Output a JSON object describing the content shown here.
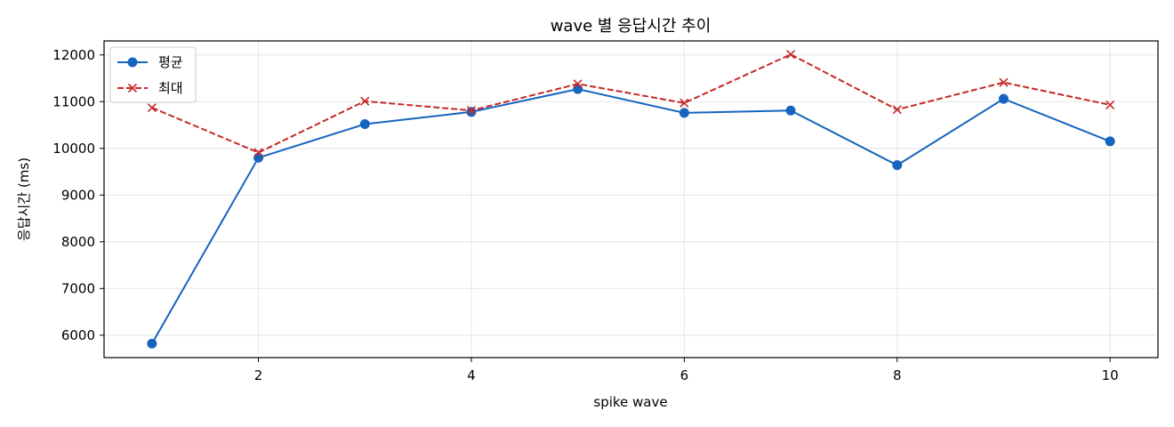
{
  "chart_data": {
    "type": "line",
    "title": "wave 별 응답시간 추이",
    "xlabel": "spike wave",
    "ylabel": "응답시간 (ms)",
    "x": [
      1,
      2,
      3,
      4,
      5,
      6,
      7,
      8,
      9,
      10
    ],
    "xlim": [
      0.55,
      10.45
    ],
    "ylim": [
      5520,
      12300
    ],
    "xticks": [
      2,
      4,
      6,
      8,
      10
    ],
    "yticks": [
      6000,
      7000,
      8000,
      9000,
      10000,
      11000,
      12000
    ],
    "grid": true,
    "legend_position": "upper-left",
    "series": [
      {
        "name": "평균",
        "color": "#1565c0",
        "marker": "circle",
        "line_style": "solid",
        "values": [
          5820,
          9800,
          10520,
          10780,
          11270,
          10760,
          10810,
          9640,
          11060,
          10150
        ]
      },
      {
        "name": "최대",
        "color": "#c62828",
        "marker": "x",
        "line_style": "dashed",
        "values": [
          10870,
          9910,
          11010,
          10810,
          11380,
          10970,
          12010,
          10830,
          11410,
          10930
        ]
      }
    ]
  }
}
